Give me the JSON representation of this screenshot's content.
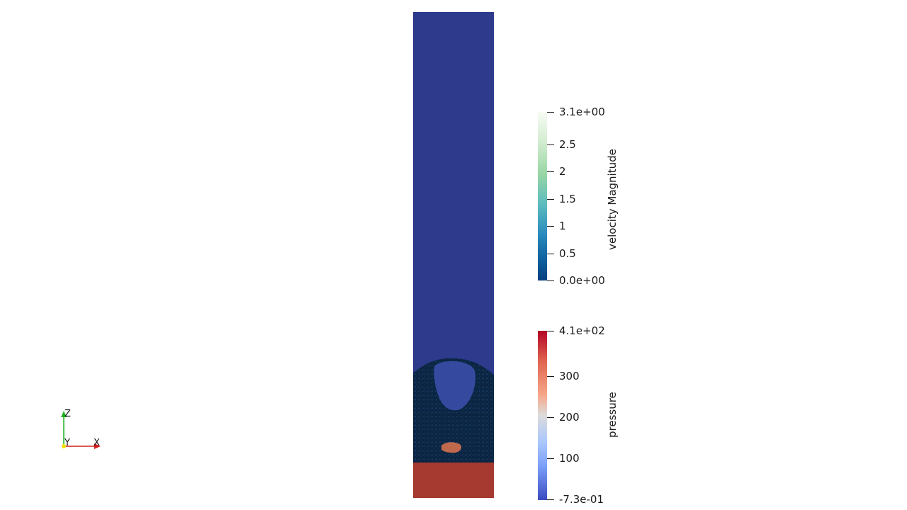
{
  "colors": {
    "background": "#ffffff",
    "domain_blue": "#2e3a8c",
    "bed_dark": "#0b2440",
    "pressure_bottom": "#a63a30",
    "axis_x": "#d42020",
    "axis_y": "#f0e000",
    "axis_z": "#20b020"
  },
  "velocity_colorbar": {
    "title": "velocity Magnitude",
    "labels": [
      "3.1e+00",
      "2.5",
      "2",
      "1.5",
      "1",
      "0.5",
      "0.0e+00"
    ],
    "values": [
      3.1,
      2.5,
      2,
      1.5,
      1,
      0.5,
      0.0
    ],
    "range": [
      0.0,
      3.1
    ]
  },
  "pressure_colorbar": {
    "title": "pressure",
    "labels": [
      "4.1e+02",
      "300",
      "200",
      "100",
      "-7.3e-01"
    ],
    "values": [
      410,
      300,
      200,
      100,
      -0.73
    ],
    "range": [
      -0.73,
      410
    ]
  },
  "axes": {
    "x_label": "X",
    "y_label": "Y",
    "z_label": "Z"
  }
}
